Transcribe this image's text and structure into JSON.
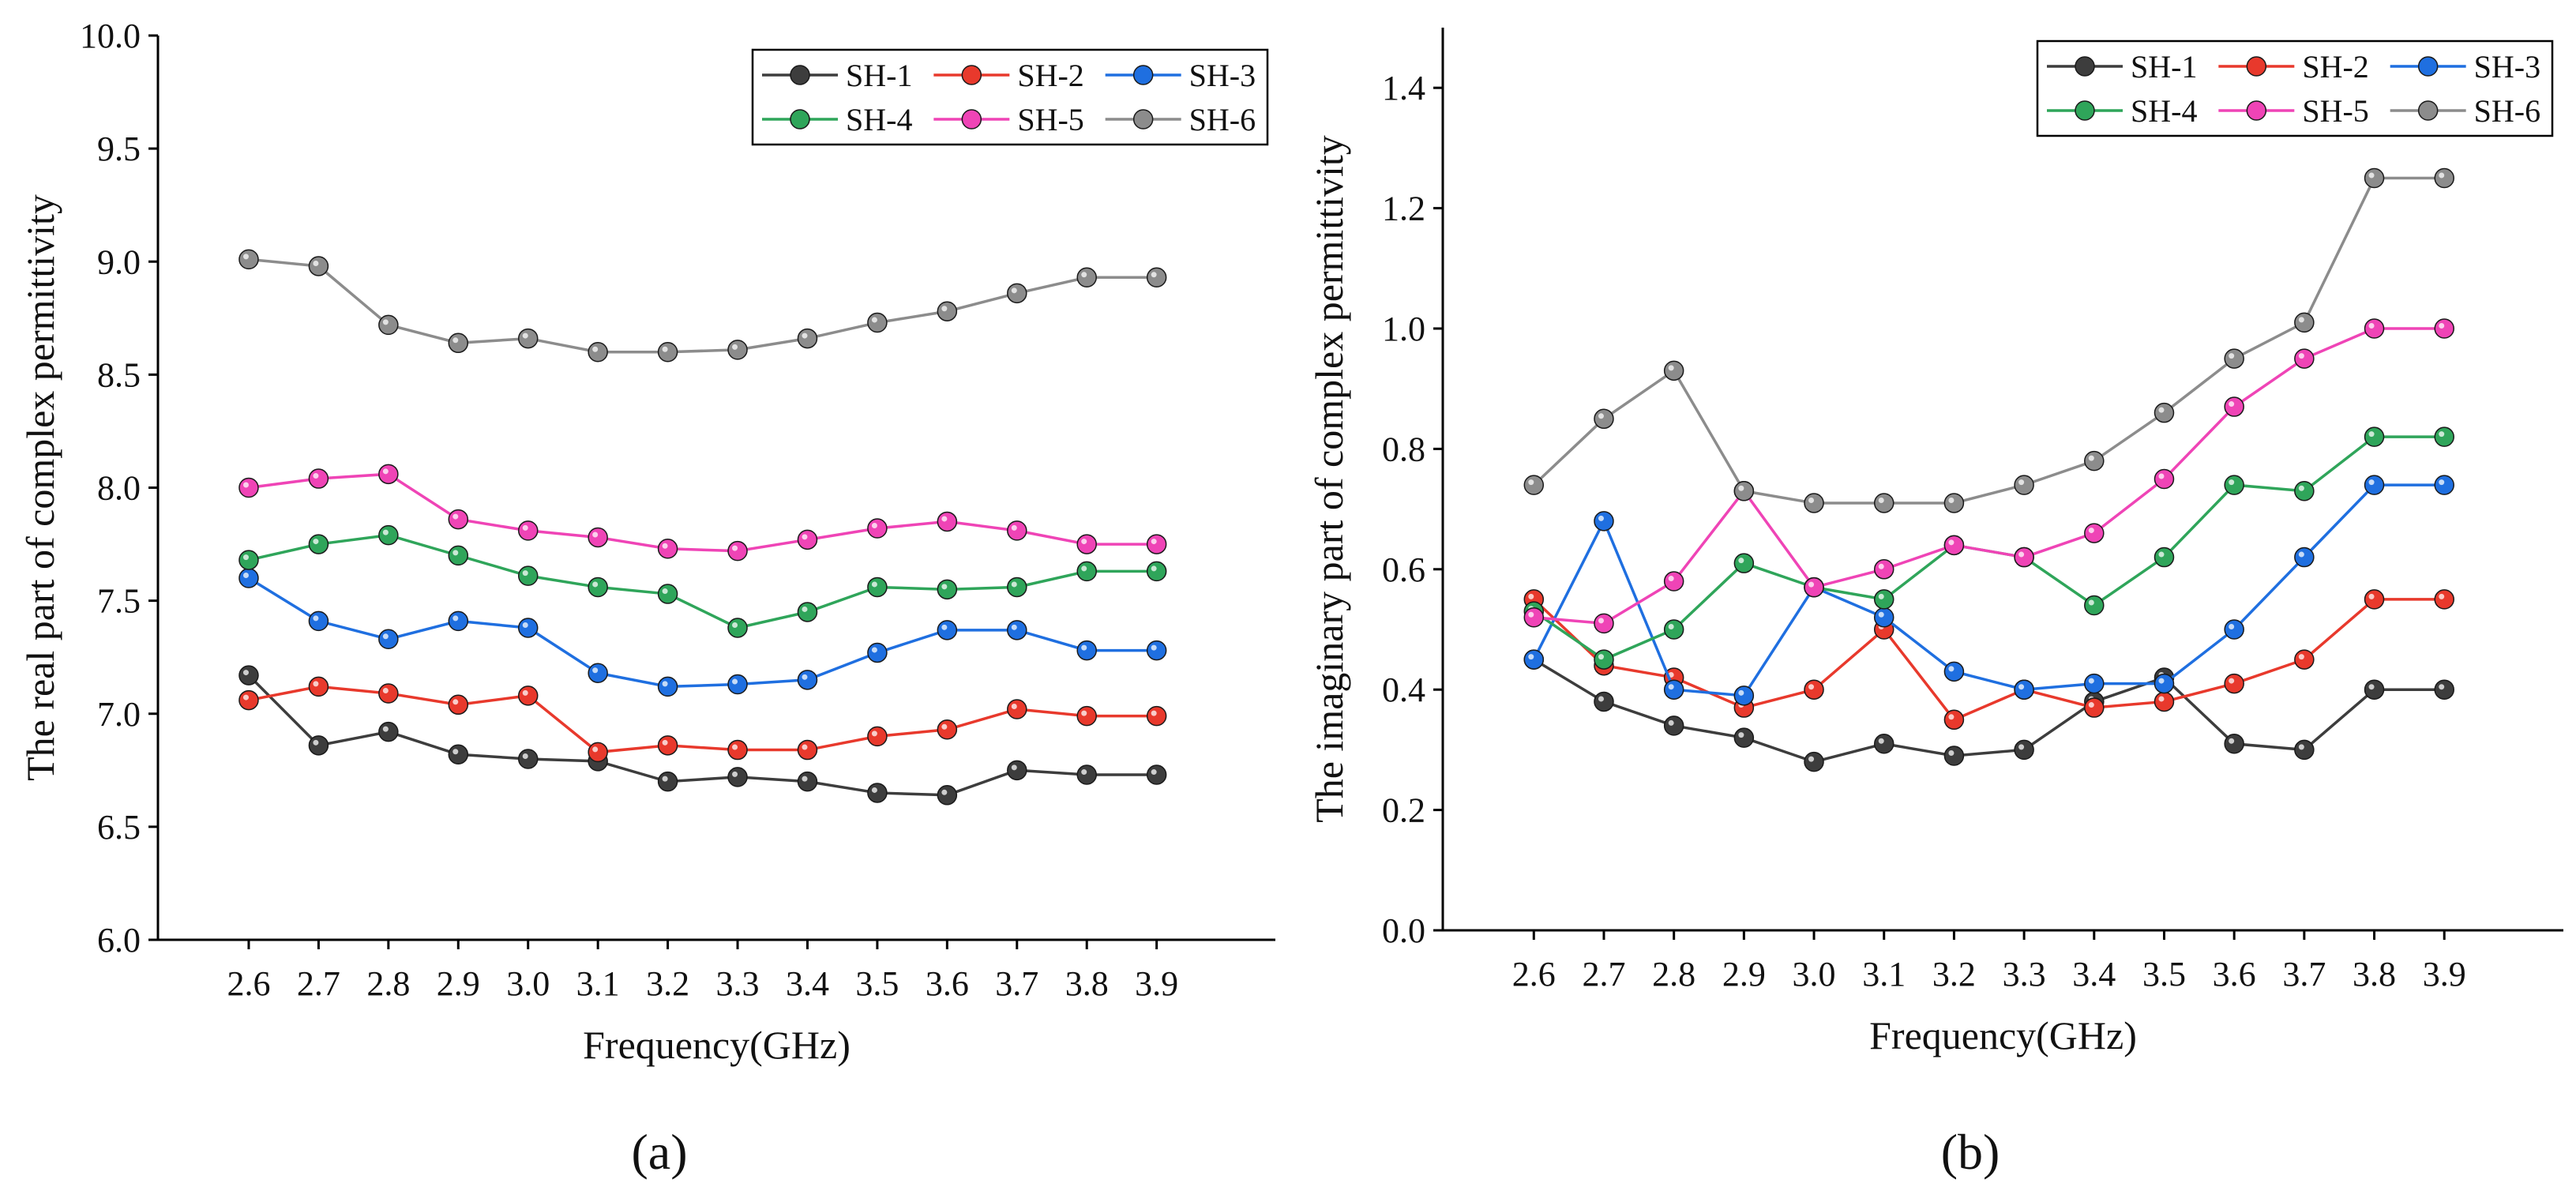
{
  "panels": [
    {
      "id": "a",
      "panel_label": "(a)",
      "legend_position": "top-right"
    },
    {
      "id": "b",
      "panel_label": "(b)",
      "legend_position": "top-right"
    }
  ],
  "colors": {
    "SH-1": "#3d3d3d",
    "SH-2": "#e8392c",
    "SH-3": "#1f6fe0",
    "SH-4": "#2fa55a",
    "SH-5": "#ef44b6",
    "SH-6": "#8c8c8c"
  },
  "chart_data": [
    {
      "type": "line",
      "title": "",
      "xlabel": "Frequency(GHz)",
      "ylabel": "The real part of  complex permittivity",
      "x": [
        "2.6",
        "2.7",
        "2.8",
        "2.9",
        "3.0",
        "3.1",
        "3.2",
        "3.3",
        "3.4",
        "3.5",
        "3.6",
        "3.7",
        "3.8",
        "3.9"
      ],
      "ylim": [
        6.0,
        10.0
      ],
      "yticks": [
        "6.0",
        "6.5",
        "7.0",
        "7.5",
        "8.0",
        "8.5",
        "9.0",
        "9.5",
        "10.0"
      ],
      "legend_position": "top-right",
      "series": [
        {
          "name": "SH-1",
          "values": [
            7.17,
            6.86,
            6.92,
            6.82,
            6.8,
            6.79,
            6.7,
            6.72,
            6.7,
            6.65,
            6.64,
            6.75,
            6.73,
            6.73
          ]
        },
        {
          "name": "SH-2",
          "values": [
            7.06,
            7.12,
            7.09,
            7.04,
            7.08,
            6.83,
            6.86,
            6.84,
            6.84,
            6.9,
            6.93,
            7.02,
            6.99,
            6.99
          ]
        },
        {
          "name": "SH-3",
          "values": [
            7.6,
            7.41,
            7.33,
            7.41,
            7.38,
            7.18,
            7.12,
            7.13,
            7.15,
            7.27,
            7.37,
            7.37,
            7.28,
            7.28
          ]
        },
        {
          "name": "SH-4",
          "values": [
            7.68,
            7.75,
            7.79,
            7.7,
            7.61,
            7.56,
            7.53,
            7.38,
            7.45,
            7.56,
            7.55,
            7.56,
            7.63,
            7.63
          ]
        },
        {
          "name": "SH-5",
          "values": [
            8.0,
            8.04,
            8.06,
            7.86,
            7.81,
            7.78,
            7.73,
            7.72,
            7.77,
            7.82,
            7.85,
            7.81,
            7.75,
            7.75
          ]
        },
        {
          "name": "SH-6",
          "values": [
            9.01,
            8.98,
            8.72,
            8.64,
            8.66,
            8.6,
            8.6,
            8.61,
            8.66,
            8.73,
            8.78,
            8.86,
            8.93,
            8.93
          ]
        }
      ]
    },
    {
      "type": "line",
      "title": "",
      "xlabel": "Frequency(GHz)",
      "ylabel": "The imaginary part of complex permittivity",
      "x": [
        "2.6",
        "2.7",
        "2.8",
        "2.9",
        "3.0",
        "3.1",
        "3.2",
        "3.3",
        "3.4",
        "3.5",
        "3.6",
        "3.7",
        "3.8",
        "3.9"
      ],
      "ylim": [
        0.0,
        1.5
      ],
      "yticks": [
        "0.0",
        "0.2",
        "0.4",
        "0.6",
        "0.8",
        "1.0",
        "1.2",
        "1.4"
      ],
      "legend_position": "top-right",
      "series": [
        {
          "name": "SH-1",
          "values": [
            0.45,
            0.38,
            0.34,
            0.32,
            0.28,
            0.31,
            0.29,
            0.3,
            0.38,
            0.42,
            0.31,
            0.3,
            0.4,
            0.4
          ]
        },
        {
          "name": "SH-2",
          "values": [
            0.55,
            0.44,
            0.42,
            0.37,
            0.4,
            0.5,
            0.35,
            0.4,
            0.37,
            0.38,
            0.41,
            0.45,
            0.55,
            0.55
          ]
        },
        {
          "name": "SH-3",
          "values": [
            0.45,
            0.68,
            0.4,
            0.39,
            0.57,
            0.52,
            0.43,
            0.4,
            0.41,
            0.41,
            0.5,
            0.62,
            0.74,
            0.74
          ]
        },
        {
          "name": "SH-4",
          "values": [
            0.53,
            0.45,
            0.5,
            0.61,
            0.57,
            0.55,
            0.64,
            0.62,
            0.54,
            0.62,
            0.74,
            0.73,
            0.82,
            0.82
          ]
        },
        {
          "name": "SH-5",
          "values": [
            0.52,
            0.51,
            0.58,
            0.73,
            0.57,
            0.6,
            0.64,
            0.62,
            0.66,
            0.75,
            0.87,
            0.95,
            1.0,
            1.0
          ]
        },
        {
          "name": "SH-6",
          "values": [
            0.74,
            0.85,
            0.93,
            0.73,
            0.71,
            0.71,
            0.71,
            0.74,
            0.78,
            0.86,
            0.95,
            1.01,
            1.25,
            1.25
          ]
        }
      ]
    }
  ]
}
